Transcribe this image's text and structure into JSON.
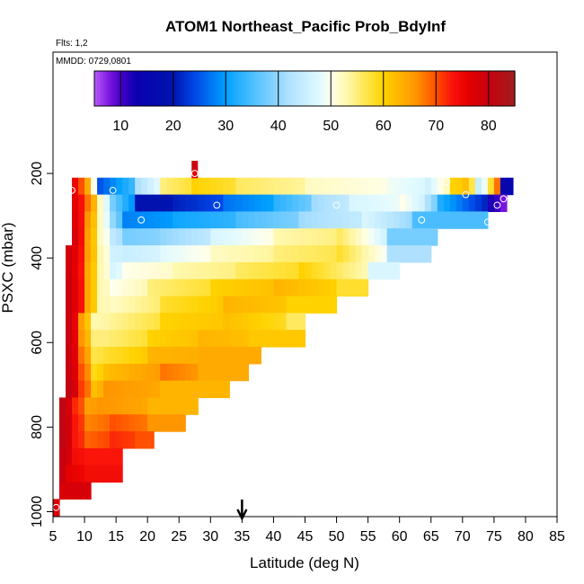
{
  "chart_data": {
    "type": "heatmap",
    "title": "ATOM1 Northeast_Pacific Prob_BdyInf",
    "subtitle_flts": "Flts: 1,2",
    "subtitle_mmdd": "MMDD: 0729,0801",
    "xlabel": "Latitude (deg N)",
    "ylabel": "PSXC (mbar)",
    "xlim": [
      5,
      85
    ],
    "ylim": [
      1000,
      0
    ],
    "x_ticks": [
      "5",
      "10",
      "15",
      "20",
      "25",
      "30",
      "35",
      "40",
      "45",
      "50",
      "55",
      "60",
      "65",
      "70",
      "75",
      "80",
      "85"
    ],
    "y_ticks": [
      "200",
      "400",
      "600",
      "800",
      "1000"
    ],
    "colorbar_ticks": [
      "10",
      "20",
      "30",
      "40",
      "50",
      "60",
      "70",
      "80"
    ],
    "colorbar_range": [
      5,
      85
    ],
    "arrow_latitude": 35,
    "rows": [
      {
        "p": 230,
        "segments": [
          [
            8,
            9,
            75
          ],
          [
            9,
            11,
            70
          ],
          [
            11,
            12,
            50
          ],
          [
            12,
            18,
            25
          ],
          [
            18,
            22,
            42
          ],
          [
            22,
            27,
            55
          ],
          [
            27,
            34,
            60
          ],
          [
            34,
            45,
            56
          ],
          [
            45,
            58,
            52
          ],
          [
            58,
            64,
            49
          ],
          [
            64,
            68,
            46
          ],
          [
            68,
            70,
            60
          ],
          [
            70,
            72,
            62
          ],
          [
            72,
            74,
            45
          ],
          [
            74,
            75,
            58
          ],
          [
            75,
            76,
            68
          ],
          [
            76,
            78,
            15
          ]
        ]
      },
      {
        "p": 270,
        "segments": [
          [
            8,
            10,
            76
          ],
          [
            10,
            12,
            68
          ],
          [
            12,
            14,
            52
          ],
          [
            14,
            18,
            38
          ],
          [
            18,
            24,
            19
          ],
          [
            24,
            32,
            21
          ],
          [
            32,
            40,
            27
          ],
          [
            40,
            46,
            33
          ],
          [
            46,
            52,
            41
          ],
          [
            52,
            60,
            47
          ],
          [
            60,
            64,
            50
          ],
          [
            64,
            66,
            42
          ],
          [
            66,
            74,
            32
          ],
          [
            74,
            76,
            12
          ],
          [
            76,
            77,
            8
          ]
        ]
      },
      {
        "p": 310,
        "segments": [
          [
            8,
            10,
            77
          ],
          [
            10,
            12,
            66
          ],
          [
            12,
            14,
            52
          ],
          [
            14,
            16,
            40
          ],
          [
            16,
            24,
            28
          ],
          [
            24,
            34,
            31
          ],
          [
            34,
            44,
            35
          ],
          [
            44,
            54,
            41
          ],
          [
            54,
            62,
            47
          ],
          [
            62,
            74,
            35
          ]
        ]
      },
      {
        "p": 350,
        "segments": [
          [
            8,
            10,
            78
          ],
          [
            10,
            12,
            65
          ],
          [
            12,
            14,
            52
          ],
          [
            14,
            16,
            44
          ],
          [
            16,
            22,
            38
          ],
          [
            22,
            30,
            40
          ],
          [
            30,
            40,
            47
          ],
          [
            40,
            50,
            53
          ],
          [
            50,
            58,
            56
          ],
          [
            58,
            66,
            38
          ]
        ]
      },
      {
        "p": 390,
        "segments": [
          [
            7,
            10,
            79
          ],
          [
            10,
            12,
            65
          ],
          [
            12,
            14,
            53
          ],
          [
            14,
            16,
            46
          ],
          [
            16,
            22,
            45
          ],
          [
            22,
            30,
            48
          ],
          [
            30,
            40,
            52
          ],
          [
            40,
            50,
            55
          ],
          [
            50,
            58,
            58
          ],
          [
            58,
            65,
            42
          ]
        ]
      },
      {
        "p": 430,
        "segments": [
          [
            7,
            10,
            79
          ],
          [
            10,
            12,
            64
          ],
          [
            12,
            14,
            53
          ],
          [
            14,
            16,
            47
          ],
          [
            16,
            24,
            50
          ],
          [
            24,
            34,
            53
          ],
          [
            34,
            44,
            56
          ],
          [
            44,
            55,
            60
          ],
          [
            55,
            60,
            47
          ]
        ]
      },
      {
        "p": 470,
        "segments": [
          [
            7,
            10,
            80
          ],
          [
            10,
            12,
            64
          ],
          [
            12,
            14,
            53
          ],
          [
            14,
            20,
            50
          ],
          [
            20,
            30,
            55
          ],
          [
            30,
            40,
            60
          ],
          [
            40,
            50,
            63
          ],
          [
            50,
            55,
            58
          ]
        ]
      },
      {
        "p": 510,
        "segments": [
          [
            7,
            10,
            80
          ],
          [
            10,
            12,
            64
          ],
          [
            12,
            14,
            53
          ],
          [
            14,
            22,
            52
          ],
          [
            22,
            32,
            58
          ],
          [
            32,
            42,
            63
          ],
          [
            42,
            50,
            60
          ]
        ]
      },
      {
        "p": 550,
        "segments": [
          [
            7,
            9,
            80
          ],
          [
            9,
            11,
            65
          ],
          [
            11,
            14,
            53
          ],
          [
            14,
            22,
            54
          ],
          [
            22,
            32,
            60
          ],
          [
            32,
            42,
            62
          ],
          [
            42,
            45,
            56
          ]
        ]
      },
      {
        "p": 590,
        "segments": [
          [
            7,
            9,
            80
          ],
          [
            9,
            11,
            66
          ],
          [
            11,
            13,
            55
          ],
          [
            13,
            20,
            55
          ],
          [
            20,
            28,
            60
          ],
          [
            28,
            36,
            63
          ],
          [
            36,
            45,
            61
          ]
        ]
      },
      {
        "p": 630,
        "segments": [
          [
            7,
            9,
            80
          ],
          [
            9,
            11,
            68
          ],
          [
            11,
            13,
            57
          ],
          [
            13,
            20,
            58
          ],
          [
            20,
            28,
            63
          ],
          [
            28,
            38,
            64
          ]
        ]
      },
      {
        "p": 670,
        "segments": [
          [
            7,
            9,
            80
          ],
          [
            9,
            11,
            70
          ],
          [
            11,
            13,
            59
          ],
          [
            13,
            22,
            62
          ],
          [
            22,
            28,
            68
          ],
          [
            28,
            36,
            64
          ]
        ]
      },
      {
        "p": 710,
        "segments": [
          [
            7,
            9,
            81
          ],
          [
            9,
            11,
            71
          ],
          [
            11,
            13,
            62
          ],
          [
            13,
            22,
            66
          ],
          [
            22,
            33,
            63
          ]
        ]
      },
      {
        "p": 750,
        "segments": [
          [
            6,
            8,
            81
          ],
          [
            8,
            10,
            72
          ],
          [
            10,
            12,
            65
          ],
          [
            12,
            20,
            66
          ],
          [
            20,
            28,
            63
          ]
        ]
      },
      {
        "p": 790,
        "segments": [
          [
            6,
            8,
            81
          ],
          [
            8,
            10,
            73
          ],
          [
            10,
            14,
            67
          ],
          [
            14,
            20,
            70
          ],
          [
            20,
            26,
            66
          ]
        ]
      },
      {
        "p": 830,
        "segments": [
          [
            6,
            8,
            81
          ],
          [
            8,
            10,
            73
          ],
          [
            10,
            14,
            69
          ],
          [
            14,
            18,
            72
          ],
          [
            18,
            21,
            70
          ]
        ]
      },
      {
        "p": 870,
        "segments": [
          [
            6,
            8,
            80
          ],
          [
            8,
            10,
            74
          ],
          [
            10,
            16,
            73
          ]
        ]
      },
      {
        "p": 910,
        "segments": [
          [
            6,
            7,
            80
          ],
          [
            7,
            10,
            76
          ],
          [
            10,
            16,
            74
          ]
        ]
      },
      {
        "p": 950,
        "segments": [
          [
            6,
            11,
            78
          ]
        ]
      },
      {
        "p": 990,
        "segments": [
          [
            5,
            6,
            78
          ]
        ]
      }
    ],
    "extra_cells": [
      {
        "lat": [
          27,
          28
        ],
        "p": [
          170,
          190
        ],
        "value": 80
      },
      {
        "lat": [
          27,
          28
        ],
        "p": [
          190,
          210
        ],
        "value": 77
      }
    ],
    "markers": [
      {
        "lat": 8,
        "p": 240
      },
      {
        "lat": 14.5,
        "p": 240
      },
      {
        "lat": 27.5,
        "p": 200
      },
      {
        "lat": 19,
        "p": 310
      },
      {
        "lat": 31,
        "p": 275
      },
      {
        "lat": 50,
        "p": 275
      },
      {
        "lat": 63.5,
        "p": 310
      },
      {
        "lat": 67.5,
        "p": 220
      },
      {
        "lat": 70.5,
        "p": 250
      },
      {
        "lat": 74,
        "p": 315
      },
      {
        "lat": 75.5,
        "p": 275
      },
      {
        "lat": 76.5,
        "p": 260
      },
      {
        "lat": 5.5,
        "p": 990
      }
    ]
  }
}
